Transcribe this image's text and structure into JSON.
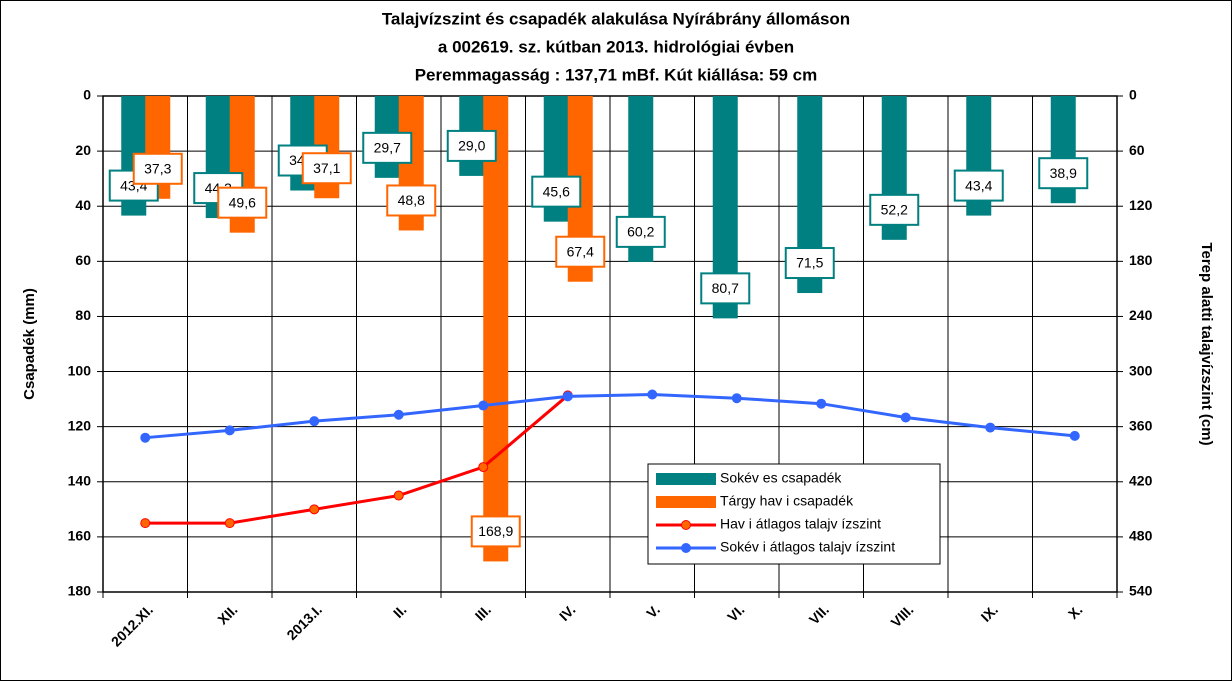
{
  "chart_data": {
    "type": "bar_line",
    "title": [
      "Talajvízszint és csapadék alakulása Nyírábrány állomáson",
      "a  002619. sz. kútban 2013. hidrológiai évben",
      "Peremmagasság : 137,71 mBf.  Kút kiállása: 59 cm"
    ],
    "ylabel": "Csapadék (mm)",
    "y2label": "Terep alatti talajvízszint (cm)",
    "categories": [
      "2012.XI.",
      "XII.",
      "2013.I.",
      "II.",
      "III.",
      "IV.",
      "V.",
      "VI.",
      "VII.",
      "VIII.",
      "IX.",
      "X."
    ],
    "ylim": [
      0,
      180
    ],
    "yticks": [
      0,
      20,
      40,
      60,
      80,
      100,
      120,
      140,
      160,
      180
    ],
    "y_inverted": true,
    "y2lim": [
      0,
      540
    ],
    "y2ticks": [
      0,
      60,
      120,
      180,
      240,
      300,
      360,
      420,
      480,
      540
    ],
    "grid": true,
    "legend": "lower-right",
    "series": [
      {
        "name": "Sokév es csapadék",
        "kind": "bar",
        "color": "#008080",
        "values": [
          43.4,
          44.3,
          34.3,
          29.7,
          29.0,
          45.6,
          60.2,
          80.7,
          71.5,
          52.2,
          43.4,
          38.9
        ],
        "value_labels": [
          "43,4",
          "44,3",
          "34,3",
          "29,7",
          "29,0",
          "45,6",
          "60,2",
          "80,7",
          "71,5",
          "52,2",
          "43,4",
          "38,9"
        ]
      },
      {
        "name": "Tárgy hav i csapadék",
        "kind": "bar",
        "color": "#ff6600",
        "values": [
          37.3,
          49.6,
          37.1,
          48.8,
          168.9,
          67.4,
          null,
          null,
          null,
          null,
          null,
          null
        ],
        "value_labels": [
          "37,3",
          "49,6",
          "37,1",
          "48,8",
          "168,9",
          "67,4",
          null,
          null,
          null,
          null,
          null,
          null
        ]
      },
      {
        "name": "Hav i átlagos talajv ízszint",
        "kind": "line",
        "axis": "y2",
        "color": "#ff0000",
        "marker_color": "#ff6600",
        "values": [
          465,
          465,
          450,
          435,
          404,
          326,
          null,
          null,
          null,
          null,
          null,
          null
        ]
      },
      {
        "name": "Sokév i átlagos talajv ízszint",
        "kind": "line",
        "axis": "y2",
        "color": "#3366ff",
        "marker_color": "#3366ff",
        "values": [
          372,
          364,
          354,
          347,
          337,
          327,
          325,
          329,
          335,
          350,
          361,
          370
        ]
      }
    ]
  }
}
